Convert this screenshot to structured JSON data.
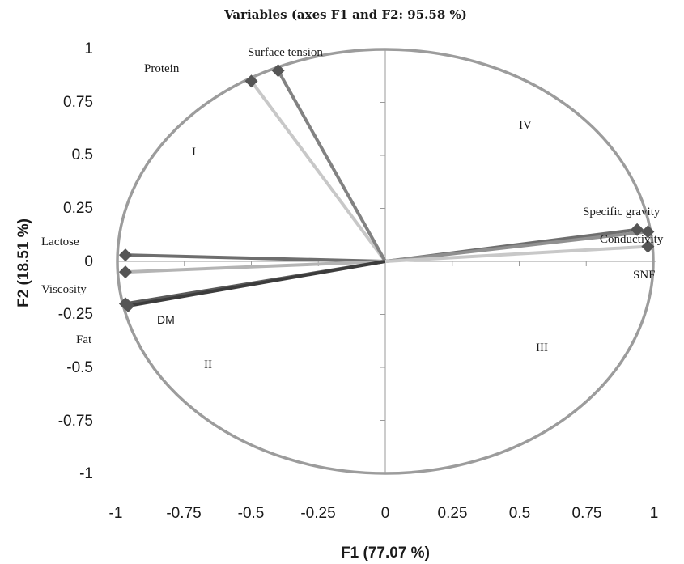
{
  "chart_data": {
    "type": "scatter",
    "title": "Variables (axes F1 and F2: 95.58 %)",
    "xlabel": "F1 (77.07 %)",
    "ylabel": "F2 (18.51 %)",
    "xlim": [
      -1,
      1
    ],
    "ylim": [
      -1,
      1
    ],
    "x_ticks": [
      "-1",
      "-0.75",
      "-0.5",
      "-0.25",
      "0",
      "0.25",
      "0.5",
      "0.75",
      "1"
    ],
    "y_ticks": [
      "1",
      "0.75",
      "0.5",
      "0.25",
      "0",
      "-0.25",
      "-0.5",
      "-0.75",
      "-1"
    ],
    "correlation_circle": true,
    "grid": false,
    "series": [
      {
        "label": "Protein",
        "x": -0.5,
        "y": 0.85,
        "color": "#c8c8c8"
      },
      {
        "label": "Surface tension",
        "x": -0.4,
        "y": 0.9,
        "color": "#828282"
      },
      {
        "label": "Lactose",
        "x": -0.97,
        "y": 0.03,
        "color": "#6e6e6e"
      },
      {
        "label": "Viscosity",
        "x": -0.97,
        "y": -0.05,
        "color": "#b4b4b4"
      },
      {
        "label": "Fat",
        "x": -0.97,
        "y": -0.2,
        "color": "#5a5a5a"
      },
      {
        "label": "DM",
        "x": -0.96,
        "y": -0.21,
        "color": "#3c3c3c"
      },
      {
        "label": "Specific gravity",
        "x": 0.94,
        "y": 0.15,
        "color": "#6e6e6e"
      },
      {
        "label": "Conductivity",
        "x": 0.98,
        "y": 0.14,
        "color": "#909090"
      },
      {
        "label": "SNF",
        "x": 0.98,
        "y": 0.07,
        "color": "#c8c8c8"
      }
    ],
    "quadrants": [
      "I",
      "II",
      "III",
      "IV"
    ]
  }
}
